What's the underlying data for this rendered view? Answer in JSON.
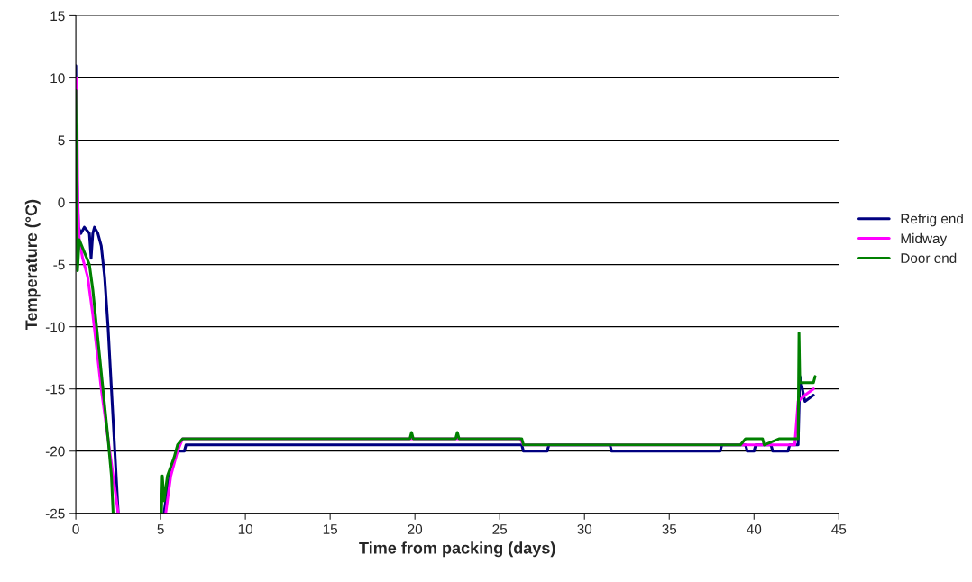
{
  "chart_data": {
    "type": "line",
    "xlabel": "Time from packing (days)",
    "ylabel": "Temperature (°C)",
    "xlim": [
      0,
      45
    ],
    "xticks": [
      0,
      5,
      10,
      15,
      20,
      25,
      30,
      35,
      40,
      45
    ],
    "ylim": [
      -25,
      15
    ],
    "yticks": [
      -25,
      -20,
      -15,
      -10,
      -5,
      0,
      5,
      10,
      15
    ],
    "grid": "y",
    "legend": "right",
    "line_style": "solid",
    "marker": "none",
    "series": [
      {
        "name": "Refrig end",
        "color": "#000080",
        "x": [
          0,
          0.05,
          0.15,
          0.3,
          0.5,
          0.8,
          0.9,
          1.0,
          1.1,
          1.3,
          1.5,
          1.7,
          1.9,
          2.1,
          2.3,
          2.5,
          3.5,
          5.2,
          5.4,
          5.7,
          6.0,
          6.4,
          6.5,
          15.3,
          15.4,
          16.8,
          26.3,
          26.4,
          27.8,
          27.9,
          31.5,
          31.6,
          38.0,
          38.1,
          39.5,
          39.6,
          40.0,
          40.1,
          41.0,
          41.1,
          42.0,
          42.1,
          42.6,
          42.7,
          43.0,
          43.5
        ],
        "values": [
          11,
          3,
          -2,
          -2.5,
          -2,
          -2.5,
          -4.5,
          -2.5,
          -2,
          -2.5,
          -3.5,
          -6,
          -10,
          -15,
          -20,
          -25,
          null,
          -25,
          -23,
          -21,
          -20,
          -20,
          -19.5,
          -19.5,
          -19.5,
          -19.5,
          -19.5,
          -20,
          -20,
          -19.5,
          -19.5,
          -20,
          -20,
          -19.5,
          -19.5,
          -20,
          -20,
          -19.5,
          -19.5,
          -20,
          -20,
          -19.5,
          -19.5,
          -14,
          -16,
          -15.5
        ]
      },
      {
        "name": "Midway",
        "color": "#ff00ff",
        "x": [
          0.05,
          0.12,
          0.2,
          0.4,
          0.7,
          1.0,
          1.5,
          2.0,
          2.3,
          2.5,
          3.5,
          5.3,
          5.6,
          6.0,
          6.3,
          26.2,
          26.4,
          42.4,
          42.6,
          43.0,
          43.5
        ],
        "values": [
          10,
          0,
          -3,
          -4.5,
          -6,
          -9,
          -15,
          -20,
          -23,
          -25,
          null,
          -25,
          -22,
          -20,
          -19,
          -19,
          -19.5,
          -19.5,
          -16,
          -15.5,
          -15
        ]
      },
      {
        "name": "Door end",
        "color": "#008000",
        "x": [
          0,
          0.1,
          0.2,
          0.5,
          0.8,
          1.0,
          1.3,
          1.6,
          1.9,
          2.1,
          2.2,
          3.5,
          5.05,
          5.1,
          5.2,
          5.4,
          5.8,
          6.0,
          6.3,
          19.7,
          19.8,
          19.9,
          22.4,
          22.5,
          22.6,
          26.3,
          26.4,
          39.2,
          39.5,
          40.5,
          40.6,
          41.5,
          42.6,
          42.65,
          42.7,
          43.5,
          43.6
        ],
        "values": [
          9,
          -5.5,
          -3,
          -4,
          -5,
          -7,
          -11,
          -15,
          -19,
          -22,
          -25,
          null,
          -25,
          -22,
          -24,
          -22,
          -20.5,
          -19.5,
          -19,
          -19,
          -18.5,
          -19,
          -19,
          -18.5,
          -19,
          -19,
          -19.5,
          -19.5,
          -19,
          -19,
          -19.5,
          -19,
          -19,
          -10.5,
          -14.5,
          -14.5,
          -14
        ]
      }
    ]
  }
}
